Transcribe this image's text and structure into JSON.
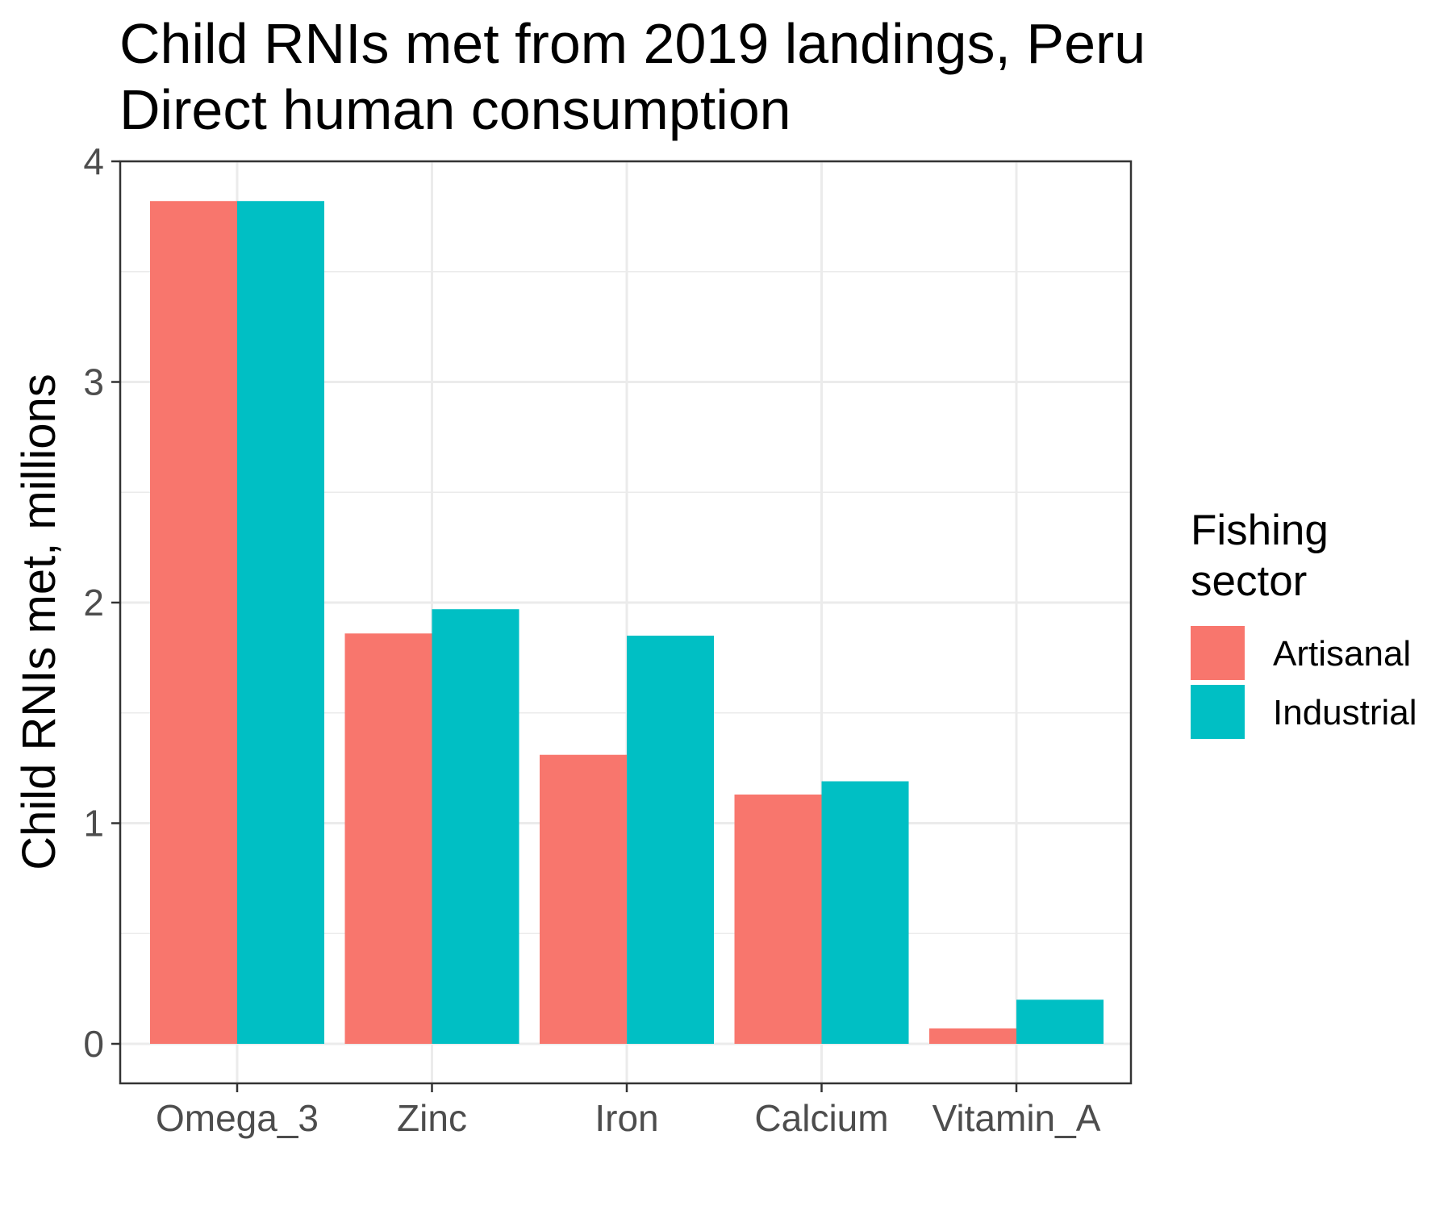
{
  "chart_data": {
    "type": "bar",
    "title": "Child RNIs met from 2019 landings, Peru",
    "subtitle": "Direct human consumption",
    "xlabel": "",
    "ylabel": "Child RNIs met, millions",
    "categories": [
      "Omega_3",
      "Zinc",
      "Iron",
      "Calcium",
      "Vitamin_A"
    ],
    "series": [
      {
        "name": "Artisanal",
        "color": "#F8766D",
        "values": [
          3.82,
          1.86,
          1.31,
          1.13,
          0.07
        ]
      },
      {
        "name": "Industrial",
        "color": "#00BFC4",
        "values": [
          3.82,
          1.97,
          1.85,
          1.19,
          0.2
        ]
      }
    ],
    "ylim": [
      0,
      4
    ],
    "yticks": [
      0,
      1,
      2,
      3,
      4
    ],
    "grid": true,
    "legend": {
      "title_line1": "Fishing",
      "title_line2": "sector",
      "position": "right"
    }
  }
}
